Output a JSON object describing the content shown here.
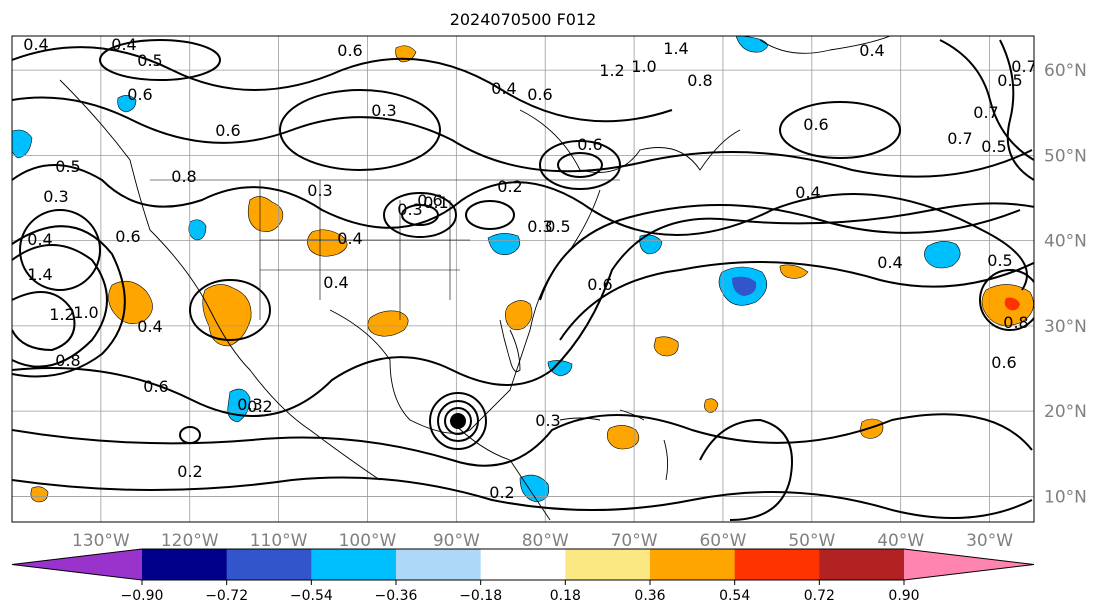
{
  "title": "2024070500 F012",
  "map": {
    "lon_range": [
      -140,
      -25
    ],
    "lat_range": [
      7,
      64
    ],
    "gridlines": true,
    "lon_ticks": [
      "130°W",
      "120°W",
      "110°W",
      "100°W",
      "90°W",
      "80°W",
      "70°W",
      "60°W",
      "50°W",
      "40°W",
      "30°W"
    ],
    "lat_ticks": [
      "60°N",
      "50°N",
      "40°N",
      "30°N",
      "20°N",
      "10°N"
    ],
    "contour_labels": [
      "0.4",
      "0.4",
      "0.5",
      "0.6",
      "0.6",
      "0.6",
      "0.3",
      "0.8",
      "0.5",
      "0.3",
      "0.4",
      "1.4",
      "1.2",
      "1.0",
      "0.6",
      "0.8",
      "0.4",
      "0.6",
      "0.3",
      "0.2",
      "0.6",
      "0.4",
      "1.4",
      "1.2",
      "1.0",
      "0.8",
      "0.6",
      "0.4",
      "0.3",
      "0.2",
      "0.6",
      "0.5",
      "0.7",
      "0.5",
      "0.4",
      "0.7",
      "0.5",
      "0.4",
      "0.8",
      "0.6",
      "0.5",
      "0.7",
      "0.6",
      "0.4",
      "0.3",
      "0.3",
      "0.6",
      "0.2",
      "0.1",
      "0.3",
      "0.4",
      "0.2"
    ]
  },
  "colorbar": {
    "boundaries": [
      "−0.90",
      "−0.72",
      "−0.54",
      "−0.36",
      "−0.18",
      "0.18",
      "0.36",
      "0.54",
      "0.72",
      "0.90"
    ],
    "colors": [
      "#9933cc",
      "#00008b",
      "#3355cc",
      "#00bfff",
      "#add8f7",
      "#ffffff",
      "#fce883",
      "#ffa500",
      "#ff3300",
      "#b22222",
      "#ff85b0"
    ],
    "extend": "both"
  }
}
